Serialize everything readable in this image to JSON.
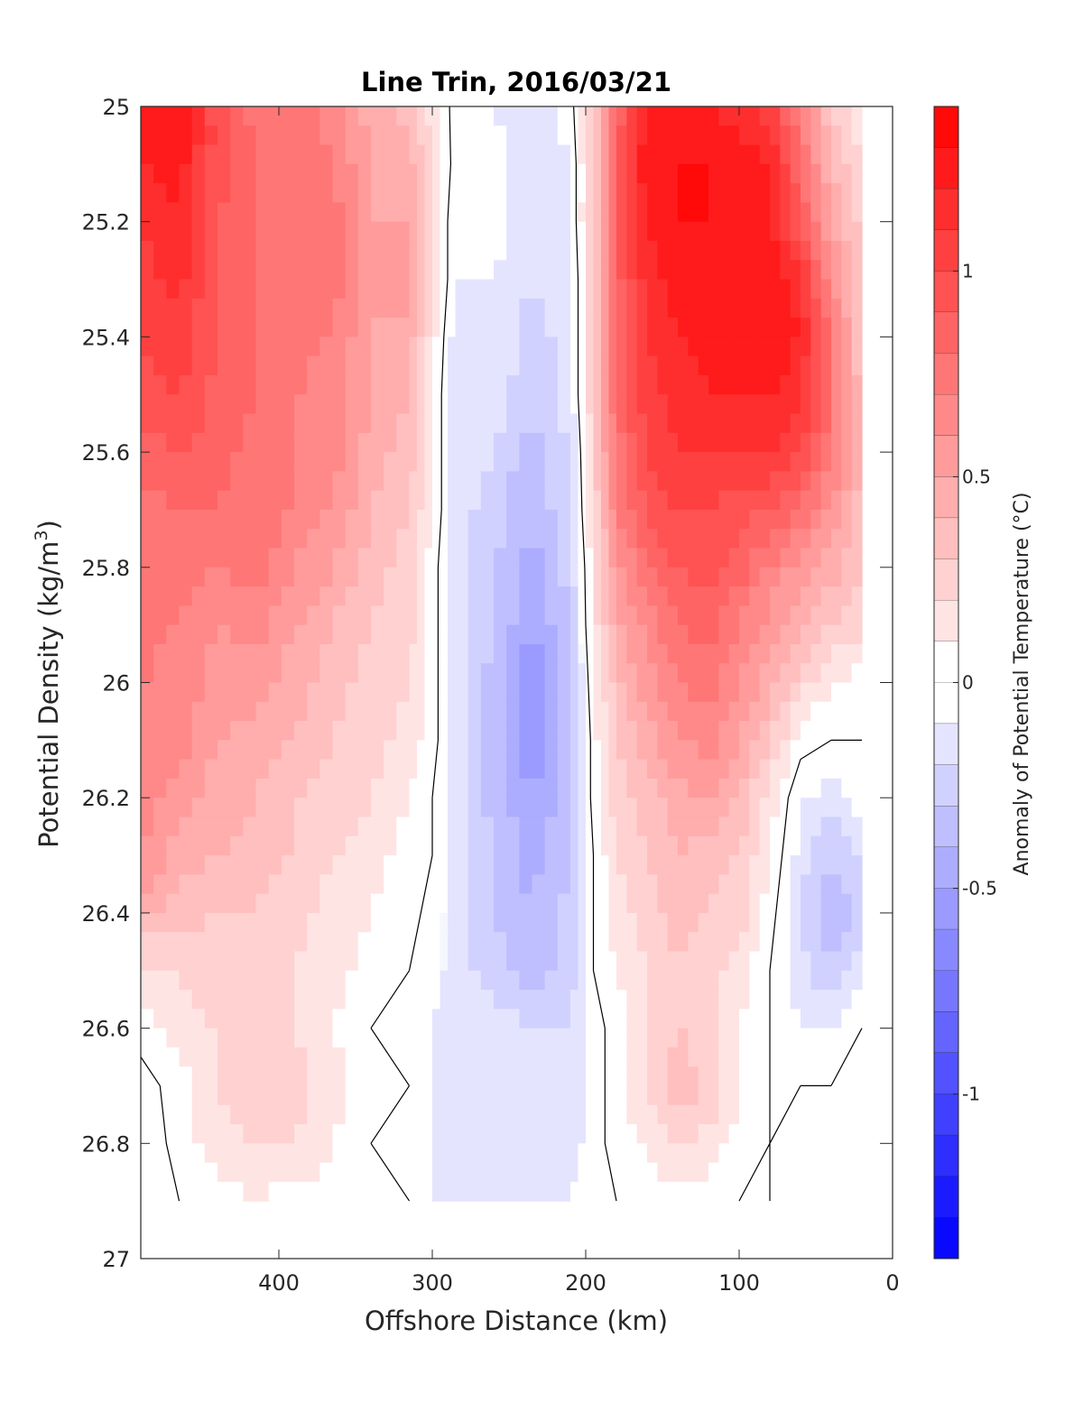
{
  "chart_data": {
    "type": "heatmap",
    "title": "Line Trin, 2016/03/21",
    "xlabel": "Offshore Distance (km)",
    "ylabel_main": "Potential Density (kg/m",
    "ylabel_sup": "3",
    "ylabel_close": ")",
    "colorbar_label": "Anomaly of Potential Temperature (°C)",
    "xlim": [
      490,
      0
    ],
    "ylim": [
      25,
      27
    ],
    "x_reversed": true,
    "y_reversed": true,
    "xticks": [
      400,
      300,
      200,
      100,
      0
    ],
    "yticks": [
      25,
      25.2,
      25.4,
      25.6,
      25.8,
      26,
      26.2,
      26.4,
      26.6,
      26.8,
      27
    ],
    "ytick_labels": [
      "25",
      "25.2",
      "25.4",
      "25.6",
      "25.8",
      "26",
      "26.2",
      "26.4",
      "26.6",
      "26.8",
      "27"
    ],
    "colorbar": {
      "limits": [
        -1.4,
        1.4
      ],
      "ticks": [
        1,
        0.5,
        0,
        -0.5,
        -1
      ],
      "tick_labels": [
        "1",
        "0.5",
        "0",
        "-0.5",
        "-1"
      ],
      "level_step": 0.1
    },
    "colors": {
      "warm": "#ff0000",
      "cold": "#0000ff",
      "zero": "#ffffff",
      "contour": "#000000"
    },
    "data_extent": {
      "x_min": 20,
      "x_max": 490,
      "y_max_data": 26.9
    },
    "x": [
      490,
      465,
      440,
      415,
      390,
      365,
      340,
      315,
      300,
      285,
      260,
      235,
      210,
      195,
      180,
      160,
      140,
      120,
      100,
      80,
      60,
      40,
      20
    ],
    "y": [
      25.0,
      25.1,
      25.2,
      25.3,
      25.4,
      25.5,
      25.6,
      25.7,
      25.8,
      25.9,
      26.0,
      26.1,
      26.2,
      26.3,
      26.4,
      26.5,
      26.6,
      26.7,
      26.8,
      26.9
    ],
    "z": [
      [
        1.25,
        1.25,
        0.95,
        0.75,
        0.75,
        0.65,
        0.45,
        0.35,
        0.15,
        -0.05,
        -0.1,
        -0.2,
        -0.05,
        0.3,
        0.8,
        1.25,
        1.25,
        1.2,
        1.15,
        1.05,
        0.7,
        0.3,
        0.1
      ],
      [
        1.2,
        1.25,
        0.95,
        0.8,
        0.75,
        0.7,
        0.5,
        0.45,
        0.2,
        -0.05,
        0.0,
        -0.2,
        -0.1,
        0.3,
        0.85,
        1.3,
        1.3,
        1.3,
        1.25,
        1.2,
        0.8,
        0.4,
        0.2
      ],
      [
        1.1,
        1.2,
        0.9,
        0.8,
        0.7,
        0.75,
        0.5,
        0.5,
        0.2,
        -0.1,
        -0.05,
        -0.2,
        -0.1,
        0.3,
        0.85,
        1.2,
        1.3,
        1.3,
        1.2,
        1.2,
        0.9,
        0.5,
        0.25
      ],
      [
        1.05,
        1.15,
        0.9,
        0.8,
        0.75,
        0.75,
        0.5,
        0.55,
        0.2,
        -0.1,
        -0.1,
        -0.2,
        -0.15,
        0.3,
        0.85,
        1.15,
        1.25,
        1.3,
        1.3,
        1.3,
        1.15,
        0.6,
        0.3
      ],
      [
        1.0,
        1.05,
        0.9,
        0.8,
        0.7,
        0.7,
        0.5,
        0.45,
        0.15,
        -0.15,
        -0.1,
        -0.25,
        -0.15,
        0.3,
        0.85,
        1.1,
        1.2,
        1.25,
        1.25,
        1.3,
        1.2,
        0.75,
        0.3
      ],
      [
        0.95,
        1.0,
        0.85,
        0.8,
        0.7,
        0.7,
        0.5,
        0.4,
        0.1,
        -0.15,
        -0.15,
        -0.3,
        -0.15,
        0.3,
        0.8,
        1.05,
        1.15,
        1.2,
        1.2,
        1.2,
        1.1,
        0.75,
        0.35
      ],
      [
        0.85,
        0.9,
        0.85,
        0.75,
        0.7,
        0.65,
        0.45,
        0.35,
        0.1,
        -0.15,
        -0.2,
        -0.35,
        -0.2,
        0.25,
        0.75,
        1.0,
        1.1,
        1.1,
        1.1,
        1.1,
        1.0,
        0.75,
        0.4
      ],
      [
        0.75,
        0.8,
        0.8,
        0.75,
        0.7,
        0.6,
        0.4,
        0.3,
        0.1,
        -0.15,
        -0.25,
        -0.4,
        -0.2,
        0.2,
        0.7,
        0.9,
        1.0,
        1.0,
        0.95,
        0.9,
        0.8,
        0.55,
        0.35
      ],
      [
        0.7,
        0.75,
        0.7,
        0.75,
        0.6,
        0.5,
        0.35,
        0.25,
        0.05,
        -0.15,
        -0.3,
        -0.45,
        -0.25,
        0.15,
        0.55,
        0.8,
        0.9,
        0.95,
        0.85,
        0.7,
        0.55,
        0.45,
        0.3
      ],
      [
        0.7,
        0.7,
        0.6,
        0.65,
        0.5,
        0.4,
        0.3,
        0.25,
        0.05,
        -0.15,
        -0.3,
        -0.5,
        -0.3,
        0.15,
        0.45,
        0.65,
        0.8,
        0.85,
        0.7,
        0.55,
        0.4,
        0.3,
        0.25
      ],
      [
        0.7,
        0.7,
        0.55,
        0.55,
        0.45,
        0.35,
        0.25,
        0.2,
        0.05,
        -0.15,
        -0.35,
        -0.6,
        -0.35,
        0.1,
        0.35,
        0.55,
        0.7,
        0.75,
        0.6,
        0.45,
        0.25,
        0.1,
        0.05
      ],
      [
        0.7,
        0.65,
        0.5,
        0.45,
        0.4,
        0.3,
        0.25,
        0.15,
        0.05,
        -0.15,
        -0.35,
        -0.6,
        -0.35,
        0.05,
        0.3,
        0.45,
        0.6,
        0.65,
        0.5,
        0.3,
        0.05,
        0.0,
        0.0
      ],
      [
        0.65,
        0.55,
        0.45,
        0.4,
        0.3,
        0.25,
        0.2,
        0.1,
        0.0,
        -0.15,
        -0.35,
        -0.5,
        -0.35,
        0.05,
        0.25,
        0.35,
        0.45,
        0.5,
        0.4,
        0.15,
        -0.1,
        -0.15,
        -0.05
      ],
      [
        0.6,
        0.45,
        0.4,
        0.35,
        0.3,
        0.2,
        0.15,
        0.05,
        0.0,
        -0.15,
        -0.3,
        -0.45,
        -0.3,
        0.0,
        0.2,
        0.3,
        0.4,
        0.35,
        0.3,
        0.1,
        -0.15,
        -0.3,
        -0.2
      ],
      [
        0.45,
        0.35,
        0.3,
        0.3,
        0.25,
        0.15,
        0.1,
        0.05,
        -0.05,
        -0.15,
        -0.3,
        -0.4,
        -0.25,
        0.0,
        0.15,
        0.25,
        0.35,
        0.3,
        0.25,
        0.05,
        -0.2,
        -0.4,
        -0.25
      ],
      [
        0.15,
        0.2,
        0.25,
        0.25,
        0.2,
        0.15,
        0.05,
        0.0,
        -0.05,
        -0.15,
        -0.25,
        -0.35,
        -0.25,
        0.0,
        0.1,
        0.2,
        0.3,
        0.25,
        0.15,
        0.0,
        -0.15,
        -0.3,
        -0.15
      ],
      [
        0.05,
        0.15,
        0.2,
        0.2,
        0.2,
        0.1,
        0.0,
        -0.05,
        -0.1,
        -0.15,
        -0.15,
        -0.2,
        -0.2,
        -0.05,
        0.05,
        0.2,
        0.3,
        0.25,
        0.1,
        0.0,
        -0.1,
        -0.1,
        0.0
      ],
      [
        -0.05,
        0.05,
        0.2,
        0.25,
        0.25,
        0.15,
        0.05,
        0.0,
        -0.1,
        -0.15,
        -0.1,
        -0.15,
        -0.2,
        -0.05,
        0.05,
        0.2,
        0.35,
        0.3,
        0.1,
        0.0,
        0.0,
        0.0,
        0.05
      ],
      [
        -0.1,
        0.05,
        0.15,
        0.2,
        0.2,
        0.1,
        0.0,
        0.0,
        -0.1,
        -0.15,
        -0.15,
        -0.2,
        -0.15,
        -0.05,
        0.05,
        0.1,
        0.2,
        0.15,
        0.05,
        0.0,
        0.05,
        0.1,
        0.05
      ],
      [
        -0.05,
        0.0,
        0.05,
        0.1,
        0.05,
        0.05,
        0.05,
        0.0,
        -0.1,
        -0.15,
        -0.15,
        -0.2,
        -0.1,
        -0.05,
        0.0,
        0.05,
        0.05,
        0.05,
        0.0,
        0.0,
        0.05,
        0.1,
        0.05
      ]
    ]
  }
}
